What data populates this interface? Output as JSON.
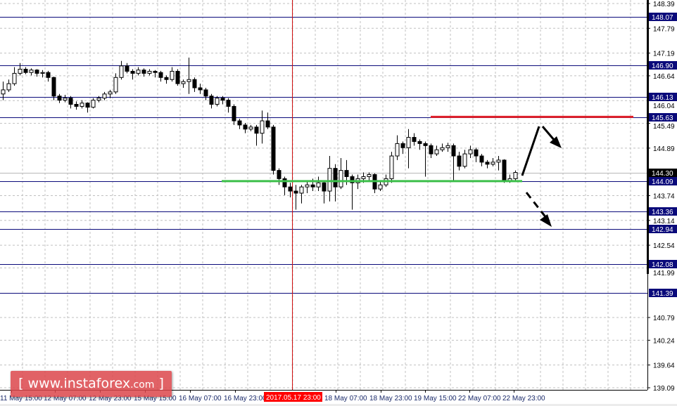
{
  "chart_data": {
    "type": "candlestick",
    "title": "",
    "ylim": [
      139.09,
      148.39
    ],
    "grid": true,
    "y_ticks": [
      "148.39",
      "147.79",
      "147.19",
      "146.64",
      "146.04",
      "145.49",
      "144.89",
      "143.74",
      "143.14",
      "142.54",
      "141.99",
      "140.79",
      "140.24",
      "139.64",
      "139.09"
    ],
    "x_ticks": [
      "11 May 15:00",
      "12 May 07:00",
      "12 May 23:00",
      "15 May 15:00",
      "16 May 07:00",
      "16 May 23:00",
      "18 May 07:00",
      "18 May 23:00",
      "19 May 15:00",
      "22 May 07:00",
      "22 May 23:00"
    ],
    "crosshair_time_label": "2017.05.17 23:00",
    "current_price": "144.30",
    "levels": [
      "148.07",
      "146.90",
      "146.13",
      "145.63",
      "144.09",
      "143.36",
      "142.94",
      "142.08",
      "141.39"
    ],
    "resistance": {
      "price": 145.63,
      "color": "#e0202a"
    },
    "support": {
      "price": 144.09,
      "color": "#3cbf4a"
    },
    "scenarios": [
      "up-then-down from 145.63",
      "breakdown below 144.09"
    ],
    "candles": [
      [
        146.2,
        146.5,
        146.05,
        146.3
      ],
      [
        146.3,
        146.55,
        146.25,
        146.45
      ],
      [
        146.45,
        146.85,
        146.4,
        146.7
      ],
      [
        146.7,
        146.95,
        146.65,
        146.8
      ],
      [
        146.8,
        146.85,
        146.68,
        146.72
      ],
      [
        146.72,
        146.82,
        146.65,
        146.78
      ],
      [
        146.78,
        146.8,
        146.62,
        146.7
      ],
      [
        146.7,
        146.78,
        146.6,
        146.72
      ],
      [
        146.72,
        146.76,
        146.5,
        146.6
      ],
      [
        146.6,
        146.62,
        146.05,
        146.15
      ],
      [
        146.15,
        146.2,
        145.98,
        146.05
      ],
      [
        146.05,
        146.18,
        146.0,
        146.1
      ],
      [
        146.1,
        146.15,
        145.85,
        145.95
      ],
      [
        145.95,
        146.02,
        145.82,
        145.9
      ],
      [
        145.9,
        146.05,
        145.85,
        145.98
      ],
      [
        145.98,
        146.0,
        145.75,
        145.88
      ],
      [
        145.88,
        146.1,
        145.85,
        146.05
      ],
      [
        146.05,
        146.15,
        146.0,
        146.1
      ],
      [
        146.1,
        146.25,
        146.05,
        146.2
      ],
      [
        146.2,
        146.3,
        146.1,
        146.25
      ],
      [
        146.25,
        146.7,
        146.2,
        146.6
      ],
      [
        146.6,
        147.0,
        146.55,
        146.88
      ],
      [
        146.88,
        146.95,
        146.7,
        146.75
      ],
      [
        146.75,
        146.8,
        146.55,
        146.7
      ],
      [
        146.7,
        146.85,
        146.65,
        146.78
      ],
      [
        146.78,
        146.82,
        146.62,
        146.7
      ],
      [
        146.7,
        146.8,
        146.65,
        146.75
      ],
      [
        146.75,
        146.78,
        146.6,
        146.72
      ],
      [
        146.72,
        146.76,
        146.5,
        146.6
      ],
      [
        146.6,
        146.65,
        146.45,
        146.55
      ],
      [
        146.55,
        146.85,
        146.5,
        146.75
      ],
      [
        146.75,
        146.8,
        146.4,
        146.45
      ],
      [
        146.45,
        146.55,
        146.35,
        146.5
      ],
      [
        146.5,
        147.08,
        146.2,
        146.55
      ],
      [
        146.55,
        146.6,
        146.25,
        146.35
      ],
      [
        146.35,
        146.45,
        146.2,
        146.3
      ],
      [
        146.3,
        146.35,
        146.05,
        146.15
      ],
      [
        146.15,
        146.2,
        145.85,
        145.95
      ],
      [
        145.95,
        146.15,
        145.9,
        146.1
      ],
      [
        146.1,
        146.15,
        145.95,
        146.05
      ],
      [
        146.05,
        146.1,
        145.75,
        145.9
      ],
      [
        145.9,
        145.95,
        145.45,
        145.55
      ],
      [
        145.55,
        145.6,
        145.35,
        145.45
      ],
      [
        145.45,
        145.5,
        145.25,
        145.35
      ],
      [
        145.35,
        145.45,
        145.3,
        145.4
      ],
      [
        145.4,
        145.45,
        144.95,
        145.25
      ],
      [
        145.25,
        145.8,
        145.0,
        145.55
      ],
      [
        145.55,
        145.75,
        145.35,
        145.4
      ],
      [
        145.4,
        145.45,
        144.25,
        144.35
      ],
      [
        144.35,
        144.4,
        144.0,
        144.15
      ],
      [
        144.15,
        144.2,
        143.75,
        143.95
      ],
      [
        143.95,
        144.05,
        143.7,
        143.85
      ],
      [
        143.85,
        144.0,
        143.4,
        143.8
      ],
      [
        143.8,
        144.0,
        143.55,
        143.95
      ],
      [
        143.95,
        144.1,
        143.8,
        144.0
      ],
      [
        144.0,
        144.15,
        143.85,
        143.95
      ],
      [
        143.95,
        144.2,
        143.85,
        144.05
      ],
      [
        144.05,
        144.1,
        143.55,
        143.85
      ],
      [
        143.85,
        144.7,
        143.6,
        144.4
      ],
      [
        144.4,
        144.5,
        143.6,
        143.95
      ],
      [
        143.95,
        144.65,
        143.9,
        144.35
      ],
      [
        144.35,
        144.6,
        144.0,
        144.2
      ],
      [
        144.2,
        144.25,
        143.4,
        144.05
      ],
      [
        144.05,
        144.25,
        143.9,
        144.15
      ],
      [
        144.15,
        144.3,
        144.05,
        144.2
      ],
      [
        144.2,
        144.3,
        144.1,
        144.25
      ],
      [
        144.25,
        144.28,
        143.8,
        143.9
      ],
      [
        143.9,
        144.1,
        143.85,
        144.0
      ],
      [
        144.0,
        144.25,
        143.95,
        144.15
      ],
      [
        144.15,
        144.8,
        144.05,
        144.7
      ],
      [
        144.7,
        145.2,
        144.6,
        145.0
      ],
      [
        145.0,
        145.05,
        144.75,
        144.9
      ],
      [
        144.9,
        145.35,
        144.4,
        145.15
      ],
      [
        145.15,
        145.25,
        144.95,
        145.05
      ],
      [
        145.05,
        145.1,
        144.85,
        145.0
      ],
      [
        145.0,
        145.05,
        144.2,
        144.95
      ],
      [
        144.95,
        145.0,
        144.65,
        144.75
      ],
      [
        144.75,
        144.95,
        144.7,
        144.85
      ],
      [
        144.85,
        145.0,
        144.8,
        144.9
      ],
      [
        144.9,
        145.02,
        144.8,
        144.95
      ],
      [
        144.95,
        145.0,
        144.1,
        144.7
      ],
      [
        144.7,
        144.8,
        144.35,
        144.45
      ],
      [
        144.45,
        144.85,
        144.4,
        144.75
      ],
      [
        144.75,
        144.95,
        144.65,
        144.85
      ],
      [
        144.85,
        144.9,
        144.55,
        144.7
      ],
      [
        144.7,
        144.75,
        144.45,
        144.55
      ],
      [
        144.55,
        144.6,
        144.4,
        144.5
      ],
      [
        144.5,
        144.65,
        144.45,
        144.55
      ],
      [
        144.55,
        144.7,
        144.35,
        144.6
      ],
      [
        144.6,
        144.62,
        144.05,
        144.1
      ],
      [
        144.1,
        144.25,
        144.05,
        144.15
      ],
      [
        144.15,
        144.35,
        144.1,
        144.3
      ]
    ]
  },
  "watermark": {
    "bracket_open": "[",
    "site": "www.instaforex",
    "tld": ".com",
    "bracket_close": "]"
  }
}
